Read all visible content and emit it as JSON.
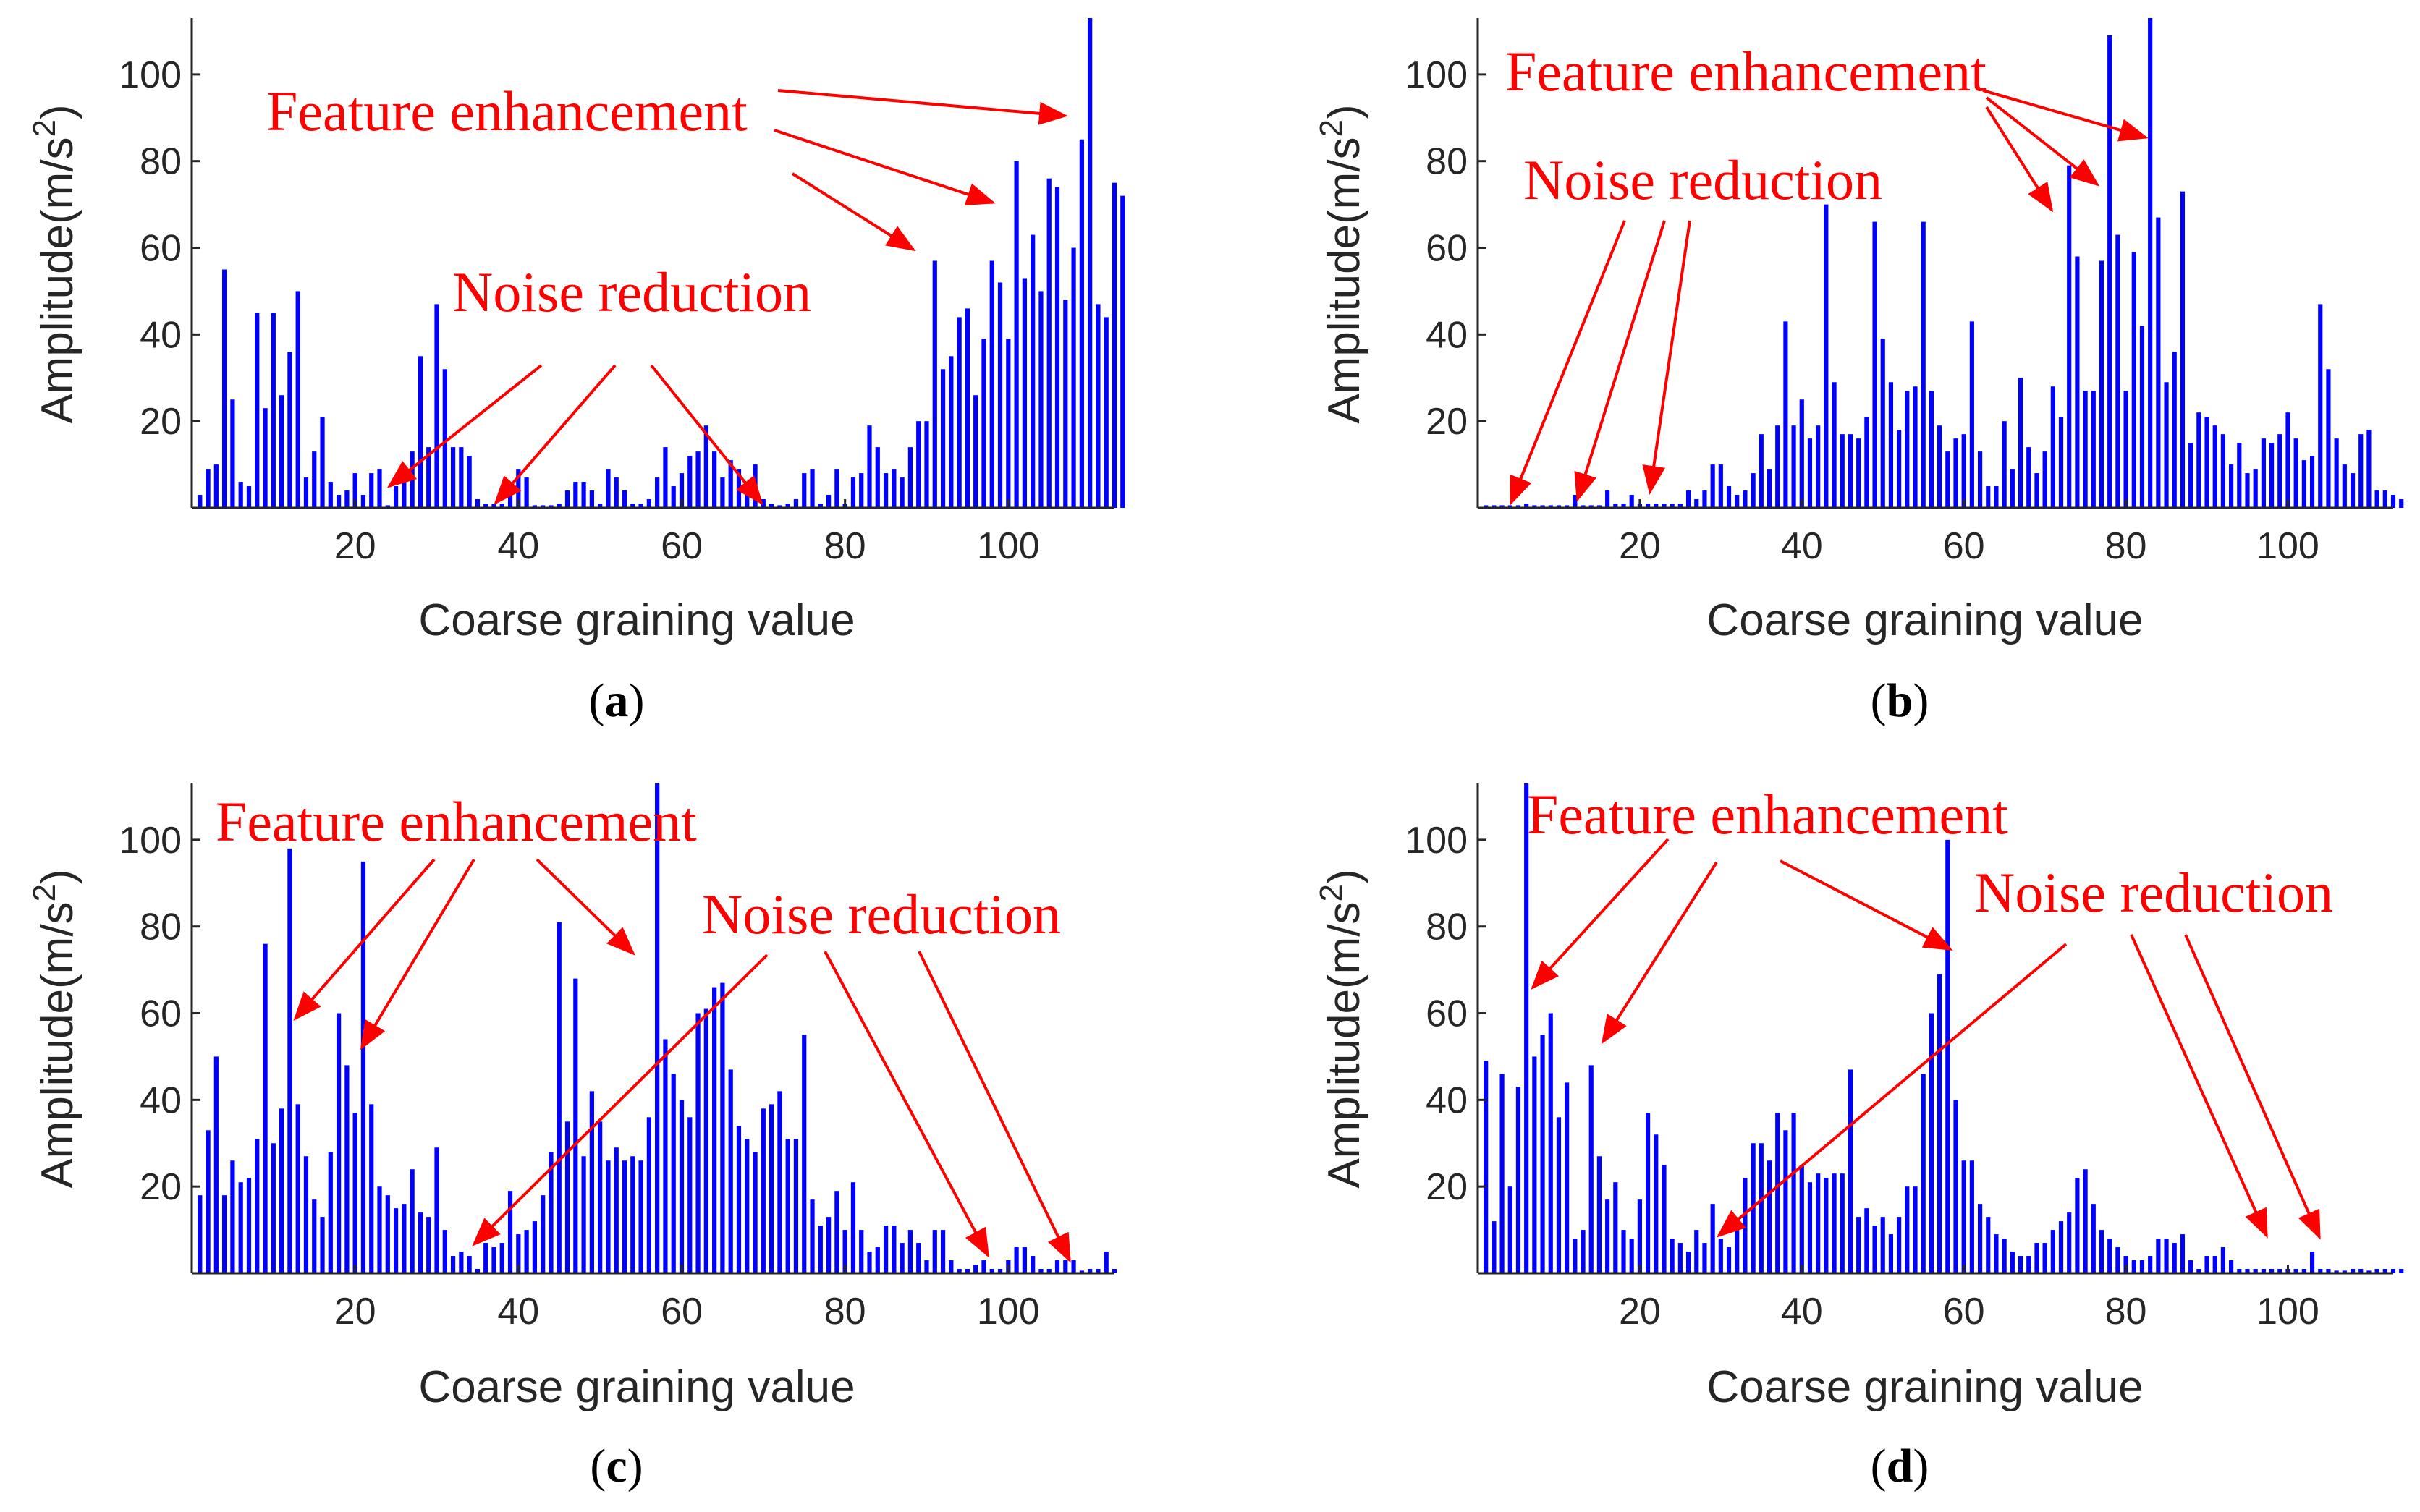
{
  "figure": {
    "colors": {
      "bar": "#0000ff",
      "annotation": "#ff0000",
      "axis": "#262626"
    }
  },
  "chart_data": [
    {
      "panel": "a",
      "type": "bar",
      "xlabel": "Coarse graining value",
      "ylabel_text": "Amplitude(m/s",
      "ylabel_sup": "2",
      "ylabel_close": ")",
      "xlim": [
        0,
        113
      ],
      "ylim": [
        0,
        113
      ],
      "xticks": [
        20,
        40,
        60,
        80,
        100
      ],
      "yticks": [
        20,
        40,
        60,
        80,
        100
      ],
      "x_start": 1,
      "values": [
        3,
        9,
        10,
        55,
        25,
        6,
        5,
        45,
        23,
        45,
        26,
        36,
        50,
        7,
        13,
        21,
        6,
        3,
        4,
        8,
        3,
        8,
        9,
        0,
        5,
        7,
        13,
        35,
        14,
        47,
        32,
        14,
        14,
        12,
        2,
        1,
        1,
        1,
        5,
        9,
        7,
        0,
        0,
        0,
        1,
        4,
        6,
        6,
        4,
        1,
        9,
        7,
        4,
        1,
        1,
        2,
        7,
        14,
        5,
        8,
        12,
        13,
        19,
        13,
        7,
        11,
        9,
        4,
        10,
        2,
        1,
        0,
        1,
        2,
        8,
        9,
        1,
        3,
        9,
        1,
        7,
        8,
        19,
        14,
        8,
        9,
        7,
        14,
        20,
        20,
        57,
        32,
        35,
        44,
        46,
        26,
        39,
        57,
        52,
        39,
        80,
        53,
        63,
        50,
        76,
        74,
        48,
        60,
        85,
        113,
        47,
        44,
        75,
        72
      ],
      "annotations": [
        {
          "text": "Feature enhancement"
        },
        {
          "text": "Noise reduction"
        }
      ],
      "panel_label": {
        "open": "(",
        "letter": "a",
        "close": ")"
      }
    },
    {
      "panel": "b",
      "type": "bar",
      "xlabel": "Coarse graining value",
      "ylabel_text": "Amplitude(m/s",
      "ylabel_sup": "2",
      "ylabel_close": ")",
      "xlim": [
        0,
        113
      ],
      "ylim": [
        0,
        113
      ],
      "xticks": [
        20,
        40,
        60,
        80,
        100
      ],
      "yticks": [
        20,
        40,
        60,
        80,
        100
      ],
      "x_start": 1,
      "values": [
        0,
        0,
        0,
        0,
        0,
        1,
        0,
        0,
        0,
        0,
        0,
        3,
        0,
        0,
        0,
        4,
        1,
        1,
        3,
        1,
        1,
        1,
        1,
        1,
        1,
        4,
        2,
        4,
        10,
        10,
        5,
        3,
        4,
        8,
        17,
        9,
        19,
        43,
        19,
        25,
        16,
        19,
        70,
        29,
        17,
        17,
        16,
        21,
        66,
        39,
        29,
        18,
        27,
        28,
        66,
        27,
        19,
        13,
        16,
        17,
        43,
        13,
        5,
        5,
        20,
        9,
        30,
        14,
        8,
        13,
        28,
        21,
        79,
        58,
        27,
        27,
        57,
        109,
        63,
        27,
        59,
        42,
        113,
        67,
        29,
        36,
        73,
        15,
        22,
        21,
        19,
        17,
        10,
        15,
        8,
        9,
        16,
        15,
        17,
        22,
        16,
        11,
        12,
        47,
        32,
        16,
        10,
        8,
        17,
        18,
        4,
        4,
        3,
        2
      ],
      "annotations": [
        {
          "text": "Feature enhancement"
        },
        {
          "text": "Noise reduction"
        }
      ],
      "panel_label": {
        "open": "(",
        "letter": "b",
        "close": ")"
      }
    },
    {
      "panel": "c",
      "type": "bar",
      "xlabel": "Coarse graining value",
      "ylabel_text": "Amplitude(m/s",
      "ylabel_sup": "2",
      "ylabel_close": ")",
      "xlim": [
        0,
        113
      ],
      "ylim": [
        0,
        113
      ],
      "xticks": [
        20,
        40,
        60,
        80,
        100
      ],
      "yticks": [
        20,
        40,
        60,
        80,
        100
      ],
      "x_start": 1,
      "values": [
        18,
        33,
        50,
        18,
        26,
        21,
        22,
        31,
        76,
        30,
        38,
        98,
        39,
        27,
        17,
        13,
        28,
        60,
        48,
        37,
        95,
        39,
        20,
        18,
        15,
        16,
        24,
        14,
        13,
        29,
        10,
        4,
        5,
        4,
        1,
        7,
        6,
        7,
        19,
        9,
        10,
        12,
        18,
        28,
        81,
        35,
        68,
        27,
        42,
        35,
        26,
        29,
        26,
        27,
        26,
        36,
        113,
        54,
        46,
        40,
        36,
        60,
        61,
        66,
        67,
        47,
        34,
        31,
        28,
        38,
        39,
        42,
        31,
        31,
        55,
        17,
        11,
        13,
        19,
        10,
        21,
        10,
        5,
        6,
        11,
        11,
        7,
        10,
        7,
        3,
        10,
        10,
        3,
        1,
        1,
        2,
        3,
        1,
        1,
        3,
        6,
        6,
        4,
        1,
        1,
        3,
        3,
        3,
        0,
        1,
        1,
        5,
        1
      ],
      "annotations": [
        {
          "text": "Feature enhancement"
        },
        {
          "text": "Noise reduction"
        }
      ],
      "panel_label": {
        "open": "(",
        "letter": "c",
        "close": ")"
      }
    },
    {
      "panel": "d",
      "type": "bar",
      "xlabel": "Coarse graining value",
      "ylabel_text": "Amplitude(m/s",
      "ylabel_sup": "2",
      "ylabel_close": ")",
      "xlim": [
        0,
        113
      ],
      "ylim": [
        0,
        113
      ],
      "xticks": [
        20,
        40,
        60,
        80,
        100
      ],
      "yticks": [
        20,
        40,
        60,
        80,
        100
      ],
      "x_start": 1,
      "values": [
        49,
        12,
        46,
        20,
        43,
        113,
        50,
        55,
        60,
        36,
        44,
        8,
        10,
        48,
        27,
        17,
        21,
        10,
        8,
        17,
        37,
        32,
        25,
        8,
        7,
        5,
        10,
        7,
        16,
        8,
        6,
        12,
        22,
        30,
        30,
        26,
        37,
        33,
        37,
        25,
        21,
        23,
        22,
        23,
        23,
        47,
        13,
        15,
        11,
        13,
        9,
        13,
        20,
        20,
        46,
        60,
        69,
        100,
        40,
        26,
        26,
        16,
        13,
        9,
        8,
        5,
        4,
        4,
        7,
        7,
        10,
        12,
        14,
        22,
        24,
        16,
        10,
        8,
        6,
        4,
        3,
        3,
        4,
        8,
        8,
        7,
        9,
        3,
        1,
        4,
        4,
        6,
        3,
        1,
        1,
        1,
        1,
        1,
        1,
        1,
        1,
        1,
        5,
        1,
        1,
        0,
        0,
        1,
        1,
        0,
        1,
        1,
        1,
        1
      ],
      "annotations": [
        {
          "text": "Feature enhancement"
        },
        {
          "text": "Noise reduction"
        }
      ],
      "panel_label": {
        "open": "(",
        "letter": "d",
        "close": ")"
      }
    }
  ]
}
